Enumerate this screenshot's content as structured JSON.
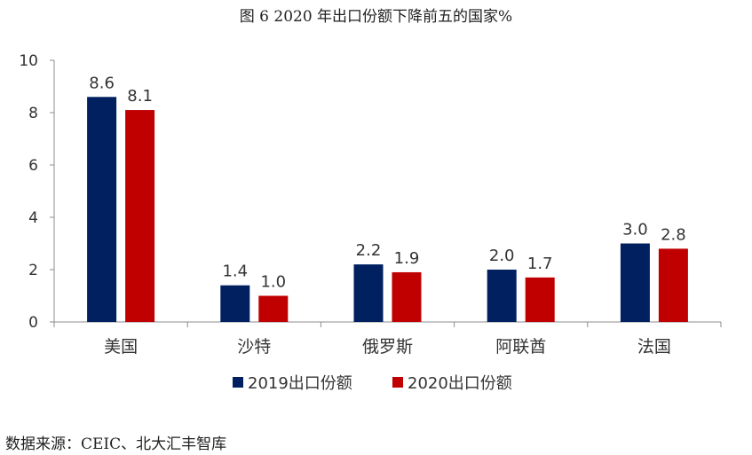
{
  "chart_data": {
    "type": "bar",
    "title": "图 6 2020 年出口份额下降前五的国家%",
    "xlabel": "",
    "ylabel": "",
    "ylim": [
      0,
      10
    ],
    "yticks": [
      0,
      2,
      4,
      6,
      8,
      10
    ],
    "grid": false,
    "legend_position": "bottom",
    "categories": [
      "美国",
      "沙特",
      "俄罗斯",
      "阿联酋",
      "法国"
    ],
    "series": [
      {
        "name": "2019出口份额",
        "color": "#002060",
        "values": [
          8.6,
          1.4,
          2.2,
          2.0,
          3.0
        ],
        "labels": [
          "8.6",
          "1.4",
          "2.2",
          "2.0",
          "3.0"
        ]
      },
      {
        "name": "2020出口份额",
        "color": "#C00000",
        "values": [
          8.1,
          1.0,
          1.9,
          1.7,
          2.8
        ],
        "labels": [
          "8.1",
          "1.0",
          "1.9",
          "1.7",
          "2.8"
        ]
      }
    ]
  },
  "source_note": "数据来源：CEIC、北大汇丰智库"
}
